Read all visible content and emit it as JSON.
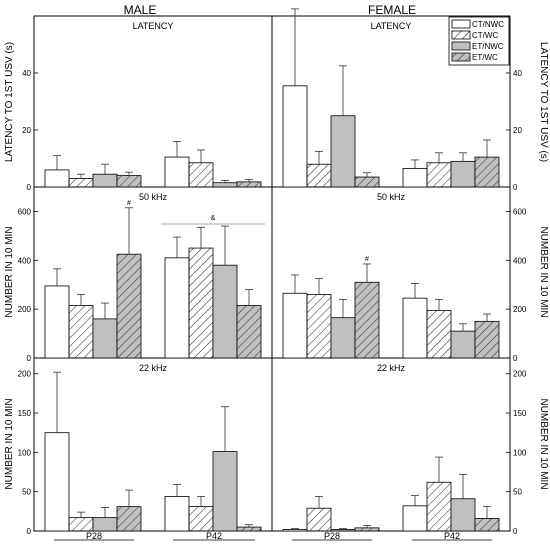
{
  "figure": {
    "sex_titles": [
      "MALE",
      "FEMALE"
    ],
    "ylabels_left": [
      "LATENCY TO 1ST USV (s)",
      "NUMBER IN 10 MIN",
      "NUMBER IN 10 MIN"
    ],
    "ylabels_right": [
      "LATENCY TO 1ST USV (s)",
      "NUMBER IN 10 MIN",
      "NUMBER IN 10 MIN"
    ],
    "age_labels": [
      "P28",
      "P42"
    ],
    "series": [
      {
        "name": "CT/NWC",
        "fill": "#ffffff",
        "hatch": false
      },
      {
        "name": "CT/WC",
        "fill": "#ffffff",
        "hatch": true
      },
      {
        "name": "ET/NWC",
        "fill": "#c0c0c0",
        "hatch": false
      },
      {
        "name": "ET/WC",
        "fill": "#c0c0c0",
        "hatch": true
      }
    ]
  },
  "chart_data": [
    {
      "type": "bar",
      "title": "LATENCY",
      "panel": "MALE",
      "ylabel": "LATENCY TO 1ST USV (s)",
      "categories": [
        "P28",
        "P42"
      ],
      "ylim": [
        0,
        60
      ],
      "yticks": [
        0,
        20,
        40
      ],
      "series": [
        {
          "name": "CT/NWC",
          "values": [
            6,
            10.5
          ],
          "errors": [
            5,
            5.5
          ]
        },
        {
          "name": "CT/WC",
          "values": [
            3,
            8.5
          ],
          "errors": [
            1.5,
            4.5
          ]
        },
        {
          "name": "ET/NWC",
          "values": [
            4.5,
            1.5
          ],
          "errors": [
            3.5,
            0.8
          ]
        },
        {
          "name": "ET/WC",
          "values": [
            4,
            1.8
          ],
          "errors": [
            1.2,
            0.8
          ]
        }
      ],
      "annotations": []
    },
    {
      "type": "bar",
      "title": "LATENCY",
      "panel": "FEMALE",
      "ylabel": "LATENCY TO 1ST USV (s)",
      "categories": [
        "P28",
        "P42"
      ],
      "ylim": [
        0,
        60
      ],
      "yticks": [
        0,
        20,
        40
      ],
      "series": [
        {
          "name": "CT/NWC",
          "values": [
            35.5,
            6.5
          ],
          "errors": [
            27,
            3
          ]
        },
        {
          "name": "CT/WC",
          "values": [
            8,
            8.5
          ],
          "errors": [
            4.5,
            3.5
          ]
        },
        {
          "name": "ET/NWC",
          "values": [
            25,
            9
          ],
          "errors": [
            17.5,
            3
          ]
        },
        {
          "name": "ET/WC",
          "values": [
            3.5,
            10.5
          ],
          "errors": [
            1.5,
            6
          ]
        }
      ],
      "annotations": []
    },
    {
      "type": "bar",
      "title": "50 kHz",
      "panel": "MALE",
      "ylabel": "NUMBER IN 10 MIN",
      "categories": [
        "P28",
        "P42"
      ],
      "ylim": [
        0,
        700
      ],
      "yticks": [
        0,
        200,
        400,
        600
      ],
      "series": [
        {
          "name": "CT/NWC",
          "values": [
            295,
            410
          ],
          "errors": [
            70,
            85
          ]
        },
        {
          "name": "CT/WC",
          "values": [
            215,
            450
          ],
          "errors": [
            45,
            85
          ]
        },
        {
          "name": "ET/NWC",
          "values": [
            160,
            380
          ],
          "errors": [
            65,
            160
          ]
        },
        {
          "name": "ET/WC",
          "values": [
            425,
            215
          ],
          "errors": [
            190,
            65
          ]
        }
      ],
      "annotations": [
        "#",
        "&"
      ]
    },
    {
      "type": "bar",
      "title": "50 kHz",
      "panel": "FEMALE",
      "ylabel": "NUMBER IN 10 MIN",
      "categories": [
        "P28",
        "P42"
      ],
      "ylim": [
        0,
        700
      ],
      "yticks": [
        0,
        200,
        400,
        600
      ],
      "series": [
        {
          "name": "CT/NWC",
          "values": [
            265,
            245
          ],
          "errors": [
            75,
            60
          ]
        },
        {
          "name": "CT/WC",
          "values": [
            260,
            195
          ],
          "errors": [
            65,
            45
          ]
        },
        {
          "name": "ET/NWC",
          "values": [
            165,
            110
          ],
          "errors": [
            75,
            30
          ]
        },
        {
          "name": "ET/WC",
          "values": [
            310,
            150
          ],
          "errors": [
            75,
            30
          ]
        }
      ],
      "annotations": [
        "#"
      ]
    },
    {
      "type": "bar",
      "title": "22 kHz",
      "panel": "MALE",
      "ylabel": "NUMBER IN 10 MIN",
      "categories": [
        "P28",
        "P42"
      ],
      "ylim": [
        0,
        220
      ],
      "yticks": [
        0,
        50,
        100,
        150,
        200
      ],
      "series": [
        {
          "name": "CT/NWC",
          "values": [
            125,
            44
          ],
          "errors": [
            77,
            15
          ]
        },
        {
          "name": "CT/WC",
          "values": [
            17,
            31
          ],
          "errors": [
            7,
            13
          ]
        },
        {
          "name": "ET/NWC",
          "values": [
            17,
            101
          ],
          "errors": [
            13,
            57
          ]
        },
        {
          "name": "ET/WC",
          "values": [
            31,
            5
          ],
          "errors": [
            21,
            3
          ]
        }
      ],
      "annotations": []
    },
    {
      "type": "bar",
      "title": "22 kHz",
      "panel": "FEMALE",
      "ylabel": "NUMBER IN 10 MIN",
      "categories": [
        "P28",
        "P42"
      ],
      "ylim": [
        0,
        220
      ],
      "yticks": [
        0,
        50,
        100,
        150,
        200
      ],
      "series": [
        {
          "name": "CT/NWC",
          "values": [
            2,
            32
          ],
          "errors": [
            1,
            13
          ]
        },
        {
          "name": "CT/WC",
          "values": [
            29,
            62
          ],
          "errors": [
            15,
            32
          ]
        },
        {
          "name": "ET/NWC",
          "values": [
            2,
            41
          ],
          "errors": [
            1,
            31
          ]
        },
        {
          "name": "ET/WC",
          "values": [
            4,
            16
          ],
          "errors": [
            3,
            15
          ]
        }
      ],
      "annotations": []
    }
  ]
}
